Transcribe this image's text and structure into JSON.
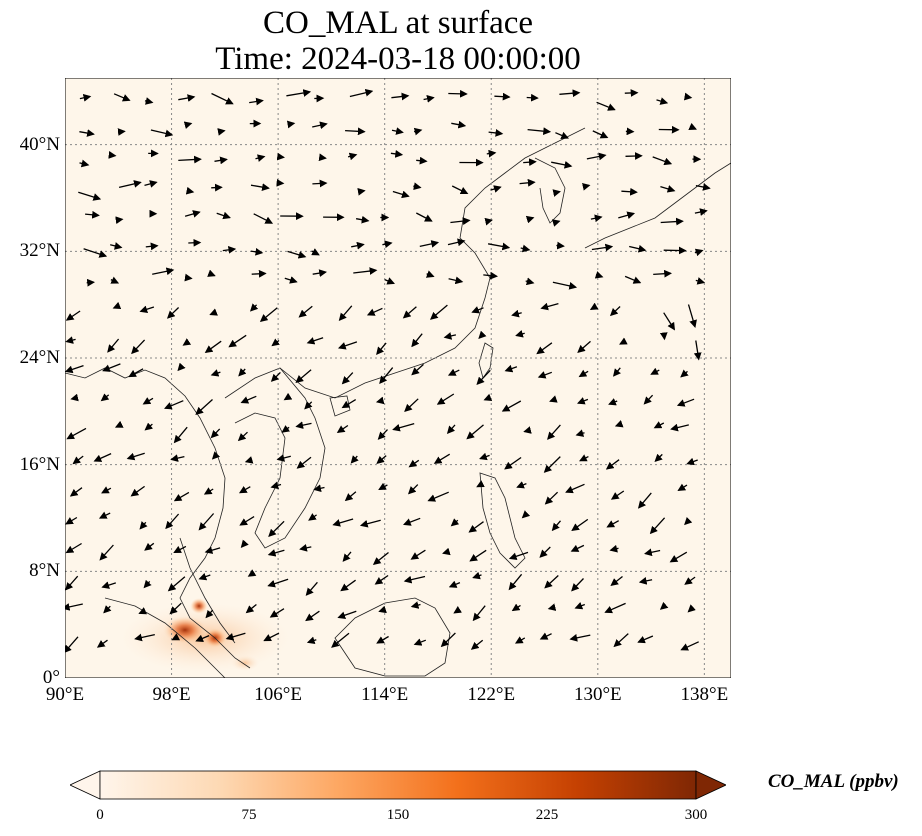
{
  "title": {
    "line1": "CO_MAL at surface",
    "line2": "Time: 2024-03-18 00:00:00"
  },
  "map": {
    "lon_range": [
      90,
      140
    ],
    "lat_range": [
      0,
      45
    ],
    "lat_ticks": [
      {
        "value": 0,
        "label": "0°"
      },
      {
        "value": 8,
        "label": "8°N"
      },
      {
        "value": 16,
        "label": "16°N"
      },
      {
        "value": 24,
        "label": "24°N"
      },
      {
        "value": 32,
        "label": "32°N"
      },
      {
        "value": 40,
        "label": "40°N"
      }
    ],
    "lon_ticks": [
      {
        "value": 90,
        "label": "90°E"
      },
      {
        "value": 98,
        "label": "98°E"
      },
      {
        "value": 106,
        "label": "106°E"
      },
      {
        "value": 114,
        "label": "114°E"
      },
      {
        "value": 122,
        "label": "122°E"
      },
      {
        "value": 130,
        "label": "130°E"
      },
      {
        "value": 138,
        "label": "138°E"
      }
    ],
    "background_color": "#fef6ea",
    "gridlines": true,
    "wind_vectors_shown": true
  },
  "colorbar": {
    "label": "CO_MAL (ppbv)",
    "min": 0,
    "max": 300,
    "extend": "both",
    "colormap": [
      "#fff5eb",
      "#fdd9b4",
      "#fda762",
      "#f3701b",
      "#c54102",
      "#7f2704"
    ],
    "ticks": [
      {
        "value": 0,
        "label": "0"
      },
      {
        "value": 75,
        "label": "75"
      },
      {
        "value": 150,
        "label": "150"
      },
      {
        "value": 225,
        "label": "225"
      },
      {
        "value": 300,
        "label": "300"
      }
    ]
  }
}
